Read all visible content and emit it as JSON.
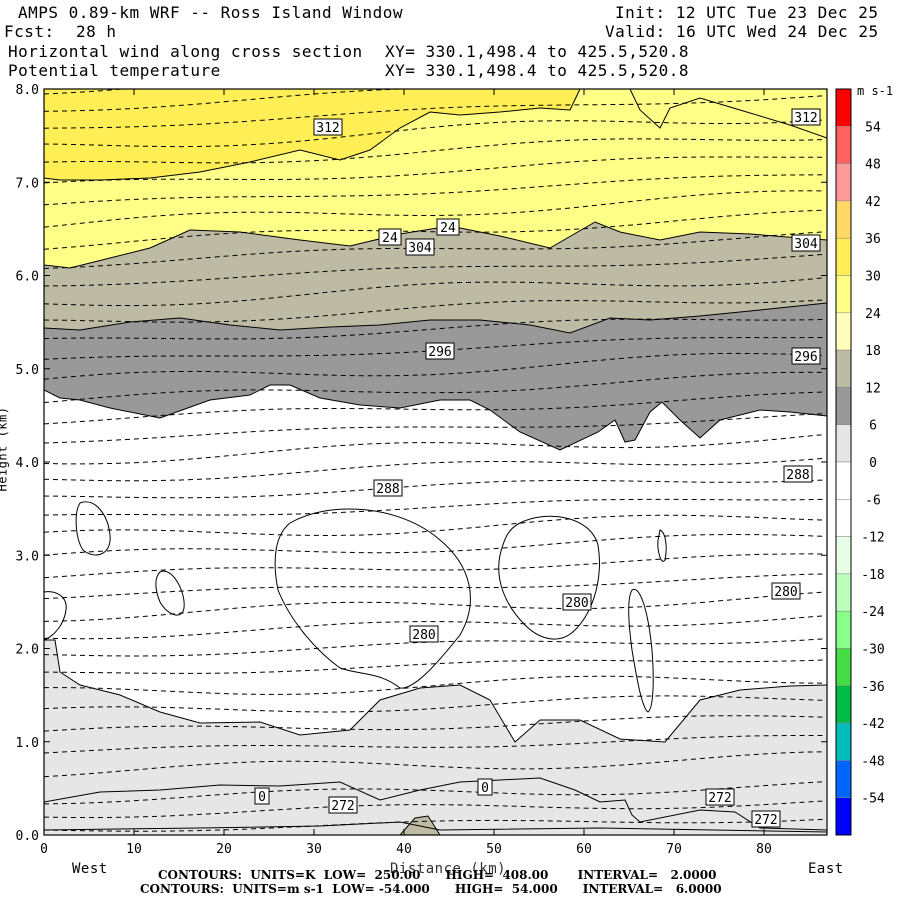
{
  "header": {
    "title": "AMPS 0.89-km WRF -- Ross Island Window",
    "init": "Init: 12 UTC Tue 23 Dec 25",
    "fcst_label": "Fcst:",
    "fcst_value": "28 h",
    "valid": "Valid: 16 UTC Wed 24 Dec 25",
    "field1": "Horizontal wind along cross section",
    "field2": "Potential temperature",
    "xy1": "XY= 330.1,498.4 to 425.5,520.8",
    "xy2": "XY= 330.1,498.4 to 425.5,520.8"
  },
  "chart_data": {
    "type": "cross-section contour",
    "xlabel": "Distance (km)",
    "ylabel": "Height (km)",
    "xlim": [
      0,
      87
    ],
    "ylim": [
      0,
      8
    ],
    "x_ticks": [
      "0",
      "10",
      "20",
      "30",
      "40",
      "50",
      "60",
      "70",
      "80"
    ],
    "y_ticks": [
      "0.0",
      "1.0",
      "2.0",
      "3.0",
      "4.0",
      "5.0",
      "6.0",
      "7.0",
      "8.0"
    ],
    "x_end_left": "West",
    "x_end_right": "East",
    "colorbar": {
      "unit": "m s-1",
      "levels": [
        "54",
        "48",
        "42",
        "36",
        "30",
        "24",
        "18",
        "12",
        "6",
        "0",
        "-6",
        "-12",
        "-18",
        "-24",
        "-30",
        "-36",
        "-42",
        "-48",
        "-54"
      ],
      "colors": [
        "#ff0000",
        "#ff6060",
        "#ff9a9a",
        "#ffd966",
        "#ffee55",
        "#ffff88",
        "#ffffbb",
        "#bdbba3",
        "#999999",
        "#e6e6e6",
        "#ffffff",
        "#ffffff",
        "#e6ffe6",
        "#bbffbb",
        "#88ff88",
        "#44dd44",
        "#00bb44",
        "#00bbbb",
        "#0066ff",
        "#0000ff"
      ]
    },
    "theta_labels": [
      "312",
      "312",
      "304",
      "304",
      "296",
      "296",
      "288",
      "288",
      "280",
      "280",
      "280",
      "272",
      "272",
      "272"
    ],
    "wind_labels": [
      "24",
      "24",
      "0",
      "0"
    ],
    "footer1": "CONTOURS:  UNITS=K  LOW=  250.00      HIGH=  408.00       INTERVAL=   2.0000",
    "footer2": "CONTOURS:  UNITS=m s-1  LOW= -54.000      HIGH=  54.000      INTERVAL=   6.0000"
  }
}
